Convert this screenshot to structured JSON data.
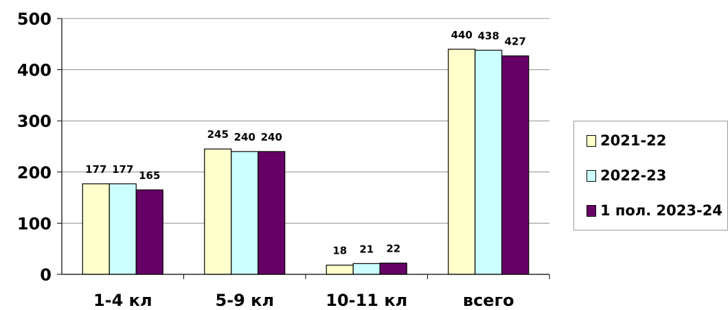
{
  "chart_data": {
    "type": "bar",
    "title": "",
    "xlabel": "",
    "ylabel": "",
    "categories": [
      "1-4 кл",
      "5-9 кл",
      "10-11 кл",
      "всего"
    ],
    "series": [
      {
        "name": "2021-22",
        "values": [
          177,
          245,
          18,
          440
        ],
        "color": "#ffffcc"
      },
      {
        "name": "2022-23",
        "values": [
          177,
          240,
          21,
          438
        ],
        "color": "#ccffff"
      },
      {
        "name": "1 пол. 2023-24",
        "values": [
          165,
          240,
          22,
          427
        ],
        "color": "#660066"
      }
    ],
    "ylim": [
      0,
      500
    ],
    "yticks": [
      "0",
      "100",
      "200",
      "300",
      "400",
      "500"
    ],
    "grid": true,
    "legend_position": "right"
  }
}
